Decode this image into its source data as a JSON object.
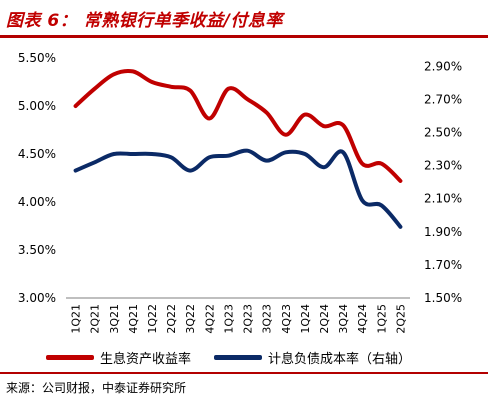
{
  "header": {
    "title": "图表 6：  常熟银行单季收益/付息率"
  },
  "legend": {
    "items": [
      {
        "label": "生息资产收益率",
        "color": "#c00000"
      },
      {
        "label": "计息负债成本率（右轴）",
        "color": "#0b2a66"
      }
    ]
  },
  "footer": {
    "source": "来源：公司财报，中泰证券研究所"
  },
  "chart_data": {
    "type": "line",
    "title": "常熟银行单季收益/付息率",
    "categories": [
      "1Q21",
      "2Q21",
      "3Q21",
      "4Q21",
      "1Q22",
      "2Q22",
      "3Q22",
      "4Q22",
      "1Q23",
      "2Q23",
      "3Q23",
      "4Q23",
      "1Q24",
      "2Q24",
      "3Q24",
      "4Q24",
      "1Q25",
      "2Q25"
    ],
    "series": [
      {
        "name": "生息资产收益率",
        "axis": "left",
        "color": "#c00000",
        "values": [
          5.0,
          5.18,
          5.33,
          5.36,
          5.25,
          5.2,
          5.16,
          4.87,
          5.18,
          5.07,
          4.93,
          4.7,
          4.91,
          4.79,
          4.8,
          4.4,
          4.4,
          4.22
        ]
      },
      {
        "name": "计息负债成本率（右轴）",
        "axis": "right",
        "color": "#0b2a66",
        "values": [
          2.27,
          2.32,
          2.37,
          2.37,
          2.37,
          2.35,
          2.27,
          2.35,
          2.36,
          2.39,
          2.33,
          2.38,
          2.37,
          2.29,
          2.38,
          2.09,
          2.06,
          1.93
        ]
      }
    ],
    "y_left": {
      "ticks": [
        "3.00%",
        "3.50%",
        "4.00%",
        "4.50%",
        "5.00%",
        "5.50%"
      ],
      "ylim": [
        3.0,
        5.5
      ]
    },
    "y_right": {
      "ticks": [
        "1.50%",
        "1.70%",
        "1.90%",
        "2.10%",
        "2.30%",
        "2.50%",
        "2.70%",
        "2.90%"
      ],
      "ylim": [
        1.5,
        2.95
      ]
    },
    "grid": false,
    "legend_position": "bottom"
  }
}
